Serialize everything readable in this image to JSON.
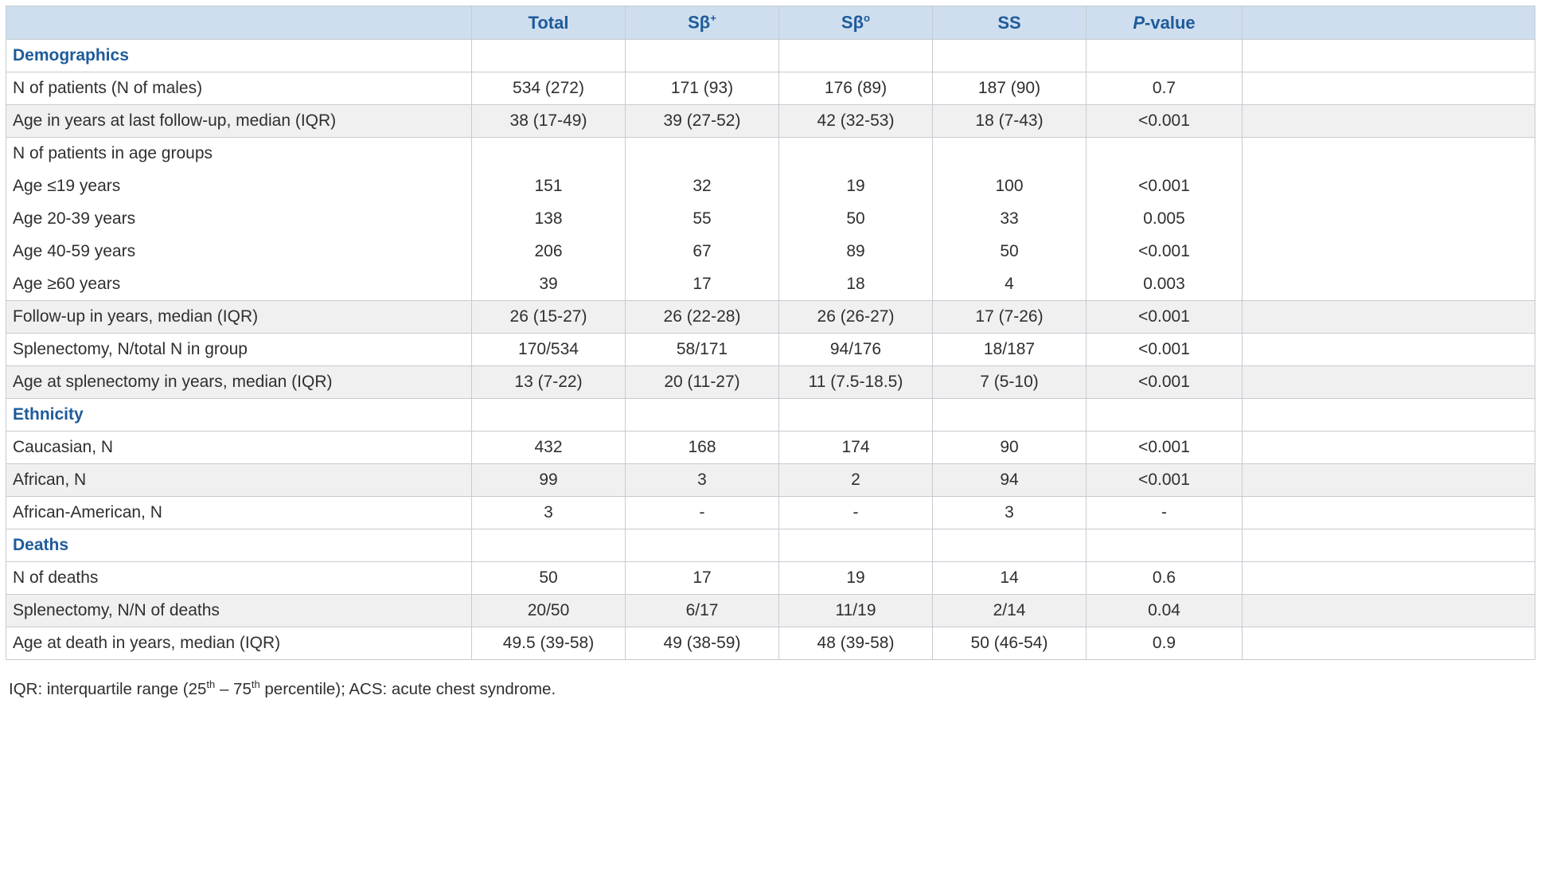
{
  "colors": {
    "header_bg": "#cfdeee",
    "accent": "#1d5b9b",
    "stripe": "#f0f0f0",
    "grid": "#c6cbd1",
    "text": "#2f2f2f"
  },
  "header": {
    "columns": [
      {
        "name": "label",
        "text": ""
      },
      {
        "name": "total",
        "text": "Total"
      },
      {
        "name": "s-beta-plus",
        "text": "Sβ",
        "sup": "+"
      },
      {
        "name": "s-beta-zero",
        "text": "Sβ",
        "sup": "o"
      },
      {
        "name": "ss",
        "text": "SS"
      },
      {
        "name": "p-value",
        "italic": "P",
        "text": "-value"
      }
    ]
  },
  "rows": [
    {
      "type": "section",
      "label": "Demographics"
    },
    {
      "type": "data",
      "label": "N of patients (N of males)",
      "values": [
        "534 (272)",
        "171 (93)",
        "176 (89)",
        "187 (90)",
        "0.7"
      ]
    },
    {
      "type": "data",
      "label": "Age in years at last follow-up, median (IQR)",
      "values": [
        "38 (17-49)",
        "39 (27-52)",
        "42 (32-53)",
        "18 (7-43)",
        "<0.001"
      ]
    },
    {
      "type": "group",
      "label": "N of patients in age groups",
      "values": [
        "",
        "",
        "",
        "",
        ""
      ]
    },
    {
      "type": "sub",
      "label": "Age ≤19 years",
      "values": [
        "151",
        "32",
        "19",
        "100",
        "<0.001"
      ]
    },
    {
      "type": "sub",
      "label": "Age 20-39 years",
      "values": [
        "138",
        "55",
        "50",
        "33",
        "0.005"
      ]
    },
    {
      "type": "sub",
      "label": "Age 40-59 years",
      "values": [
        "206",
        "67",
        "89",
        "50",
        "<0.001"
      ]
    },
    {
      "type": "sub",
      "label": "Age ≥60 years",
      "values": [
        "39",
        "17",
        "18",
        "4",
        "0.003"
      ]
    },
    {
      "type": "data",
      "label": "Follow-up in years, median (IQR)",
      "values": [
        "26 (15-27)",
        "26 (22-28)",
        "26 (26-27)",
        "17 (7-26)",
        "<0.001"
      ]
    },
    {
      "type": "data",
      "label": "Splenectomy, N/total N in group",
      "values": [
        "170/534",
        "58/171",
        "94/176",
        "18/187",
        "<0.001"
      ]
    },
    {
      "type": "data",
      "label": "Age at splenectomy in years, median (IQR)",
      "values": [
        "13 (7-22)",
        "20 (11-27)",
        "11 (7.5-18.5)",
        "7 (5-10)",
        "<0.001"
      ]
    },
    {
      "type": "section",
      "label": "Ethnicity"
    },
    {
      "type": "data",
      "label": "Caucasian, N",
      "values": [
        "432",
        "168",
        "174",
        "90",
        "<0.001"
      ]
    },
    {
      "type": "data",
      "label": "African, N",
      "values": [
        "99",
        "3",
        "2",
        "94",
        "<0.001"
      ]
    },
    {
      "type": "data",
      "label": "African-American, N",
      "values": [
        "3",
        "-",
        "-",
        "3",
        "-"
      ]
    },
    {
      "type": "section",
      "label": "Deaths"
    },
    {
      "type": "data",
      "label": "N of deaths",
      "values": [
        "50",
        "17",
        "19",
        "14",
        "0.6"
      ]
    },
    {
      "type": "data",
      "label": "Splenectomy, N/N of deaths",
      "values": [
        "20/50",
        "6/17",
        "11/19",
        "2/14",
        "0.04"
      ]
    },
    {
      "type": "data",
      "label": "Age at death in years, median (IQR)",
      "values": [
        "49.5 (39-58)",
        "49 (38-59)",
        "48 (39-58)",
        "50 (46-54)",
        "0.9"
      ]
    }
  ],
  "footnote": {
    "parts": [
      {
        "text": "IQR: interquartile range (25"
      },
      {
        "sup": "th"
      },
      {
        "text": " – 75"
      },
      {
        "sup": "th"
      },
      {
        "text": " percentile); ACS: acute chest syndrome."
      }
    ]
  }
}
